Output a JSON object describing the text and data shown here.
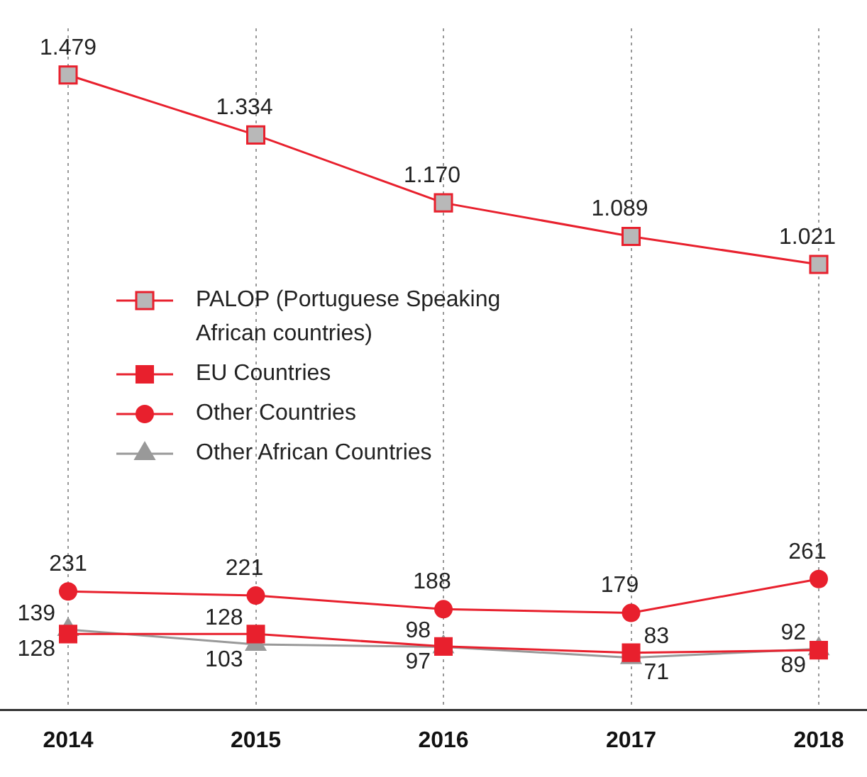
{
  "chart_data": {
    "type": "line",
    "categories": [
      "2014",
      "2015",
      "2016",
      "2017",
      "2018"
    ],
    "series": [
      {
        "name": "PALOP (Portuguese Speaking African countries)",
        "color": "#e8202d",
        "colors": [
          "#b8b8b8",
          "#b8b8b8",
          "#b8b8b8",
          "#b8b8b8",
          "#b8b8b8"
        ],
        "marker": "square",
        "values": [
          1479,
          1334,
          1170,
          1089,
          1021
        ],
        "value_labels": [
          "1.479",
          "1.334",
          "1.170",
          "1.089",
          "1.021"
        ]
      },
      {
        "name": "EU Countries",
        "color": "#e8202d",
        "marker": "square",
        "values": [
          128,
          128,
          98,
          83,
          89
        ],
        "value_labels": [
          "128",
          "128",
          "98",
          "83",
          "89"
        ]
      },
      {
        "name": "Other Countries",
        "color": "#e8202d",
        "marker": "circle",
        "values": [
          231,
          221,
          188,
          179,
          261
        ],
        "value_labels": [
          "231",
          "221",
          "188",
          "179",
          "261"
        ]
      },
      {
        "name": "Other African Countries",
        "color": "#999999",
        "marker": "triangle",
        "values": [
          139,
          103,
          97,
          71,
          92
        ],
        "value_labels": [
          "139",
          "103",
          "97",
          "71",
          "92"
        ]
      }
    ],
    "grid": "x",
    "legend": "left"
  }
}
